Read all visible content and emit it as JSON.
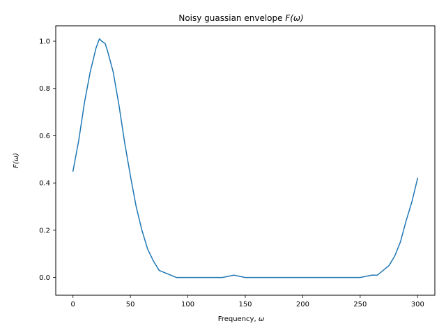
{
  "chart_data": {
    "type": "line",
    "title_prefix": "Noisy guassian envelope ",
    "title_math": "F(ω)",
    "xlabel_prefix": "Frequency, ",
    "xlabel_math": "ω",
    "ylabel_math": "F(ω)",
    "xlim": [
      -15,
      315
    ],
    "ylim": [
      -0.075,
      1.065
    ],
    "xticks": [
      0,
      50,
      100,
      150,
      200,
      250,
      300
    ],
    "xtick_labels": [
      "0",
      "50",
      "100",
      "150",
      "200",
      "250",
      "300"
    ],
    "yticks": [
      0.0,
      0.2,
      0.4,
      0.6,
      0.8,
      1.0
    ],
    "ytick_labels": [
      "0.0",
      "0.2",
      "0.4",
      "0.6",
      "0.8",
      "1.0"
    ],
    "grid": false,
    "series": [
      {
        "color": "#1f77b4",
        "x": [
          0,
          5,
          10,
          15,
          20,
          23,
          25,
          28,
          30,
          35,
          40,
          45,
          50,
          55,
          60,
          65,
          70,
          75,
          80,
          85,
          90,
          95,
          100,
          110,
          120,
          130,
          140,
          150,
          160,
          170,
          180,
          190,
          200,
          210,
          220,
          230,
          240,
          250,
          260,
          265,
          270,
          275,
          280,
          285,
          290,
          295,
          300
        ],
        "y": [
          0.45,
          0.58,
          0.74,
          0.87,
          0.97,
          1.01,
          1.0,
          0.99,
          0.96,
          0.87,
          0.73,
          0.57,
          0.43,
          0.3,
          0.2,
          0.12,
          0.07,
          0.03,
          0.02,
          0.01,
          0.0,
          0.0,
          0.0,
          0.0,
          0.0,
          0.0,
          0.01,
          0.0,
          0.0,
          0.0,
          0.0,
          0.0,
          0.0,
          0.0,
          0.0,
          0.0,
          0.0,
          0.0,
          0.01,
          0.01,
          0.03,
          0.05,
          0.09,
          0.15,
          0.24,
          0.32,
          0.42
        ]
      }
    ]
  }
}
